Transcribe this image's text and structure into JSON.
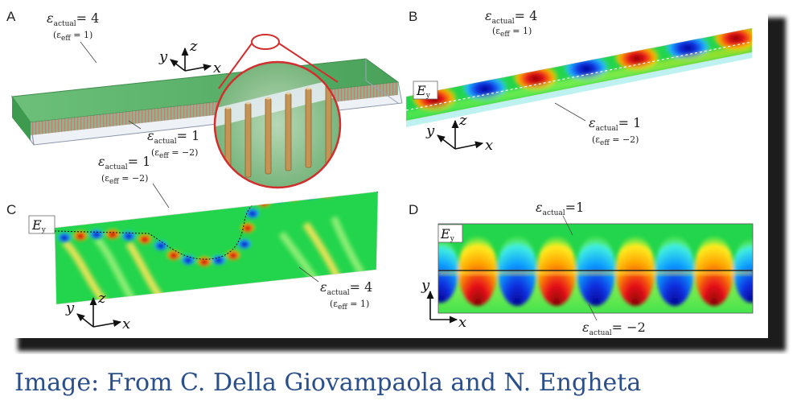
{
  "panels": {
    "a": {
      "letter": "A",
      "top": {
        "eps_sub": "actual",
        "value": "= 4",
        "paren": "(ε",
        "paren_sub": "eff",
        "paren_value": " = 1)"
      },
      "bottom": {
        "eps_sub": "actual",
        "value": "= 1",
        "paren": "(ε",
        "paren_sub": "eff",
        "paren_value": " = −2)"
      },
      "axes": {
        "x": "x",
        "y": "y",
        "z": "z"
      }
    },
    "b": {
      "letter": "B",
      "field_label": "E",
      "field_sub": "y",
      "top": {
        "eps_sub": "actual",
        "value": "= 4",
        "paren": "(ε",
        "paren_sub": "eff",
        "paren_value": " = 1)"
      },
      "bottom": {
        "eps_sub": "actual",
        "value": "= 1",
        "paren": "(ε",
        "paren_sub": "eff",
        "paren_value": " = −2)"
      },
      "axes": {
        "x": "x",
        "y": "y",
        "z": "z"
      }
    },
    "c": {
      "letter": "C",
      "field_label": "E",
      "field_sub": "y",
      "top": {
        "eps_sub": "actual",
        "value": "= 1",
        "paren": "(ε",
        "paren_sub": "eff",
        "paren_value": " = −2)"
      },
      "bottom": {
        "eps_sub": "actual",
        "value": "= 4",
        "paren": "(ε",
        "paren_sub": "eff",
        "paren_value": " = 1)"
      },
      "axes": {
        "x": "x",
        "y": "y",
        "z": "z"
      }
    },
    "d": {
      "letter": "D",
      "field_label": "E",
      "field_sub": "y",
      "top": {
        "eps_sub": "actual",
        "value": "=1"
      },
      "bottom": {
        "eps_sub": "actual",
        "value": "= −2"
      },
      "axes": {
        "x": "x",
        "y": "y"
      }
    }
  },
  "caption": "Image: From C. Della Giovampaola and N. Engheta",
  "colors": {
    "field_green": "#1fd34a",
    "positive": "#e8121a",
    "negative": "#1030e0",
    "slab_green": "#4fae5e",
    "caption": "#2a4f8a"
  }
}
